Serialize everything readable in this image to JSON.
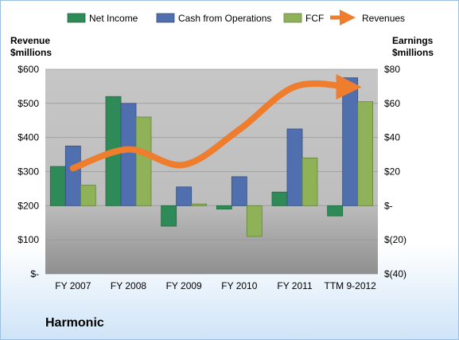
{
  "company_name": "Harmonic",
  "colors": {
    "net_income": "#2e8b57",
    "cash_from_operations": "#4f6fae",
    "fcf": "#8fb259",
    "revenues": "#ee7d2e"
  },
  "chart_data": {
    "type": "bar",
    "categories": [
      "FY 2007",
      "FY 2008",
      "FY 2009",
      "FY 2010",
      "FY 2011",
      "TTM 9-2012"
    ],
    "left_axis": {
      "title_line1": "Revenue",
      "title_line2": "$millions",
      "ylim": [
        0,
        600
      ],
      "ticks": [
        0,
        100,
        200,
        300,
        400,
        500,
        600
      ],
      "tick_labels": [
        "$-",
        "$100",
        "$200",
        "$300",
        "$400",
        "$500",
        "$600"
      ]
    },
    "right_axis": {
      "title_line1": "Earnings",
      "title_line2": "$millions",
      "ylim": [
        -40,
        80
      ],
      "ticks": [
        -40,
        -20,
        0,
        20,
        40,
        60,
        80
      ],
      "tick_labels": [
        "$(40)",
        "$(20)",
        "$-",
        "$20",
        "$40",
        "$60",
        "$80"
      ]
    },
    "series": [
      {
        "name": "Net Income",
        "key": "net_income",
        "axis": "right",
        "kind": "bar",
        "values": [
          23,
          64,
          -12,
          -2,
          8,
          -6
        ]
      },
      {
        "name": "Cash from Operations",
        "key": "cash_from_operations",
        "axis": "right",
        "kind": "bar",
        "values": [
          35,
          60,
          11,
          17,
          45,
          75
        ]
      },
      {
        "name": "FCF",
        "key": "fcf",
        "axis": "right",
        "kind": "bar",
        "values": [
          12,
          52,
          1,
          -18,
          28,
          61
        ]
      },
      {
        "name": "Revenues",
        "key": "revenues",
        "axis": "left",
        "kind": "line",
        "values": [
          310,
          365,
          320,
          423,
          549,
          548
        ]
      }
    ],
    "legend_position": "top",
    "grid": true
  }
}
